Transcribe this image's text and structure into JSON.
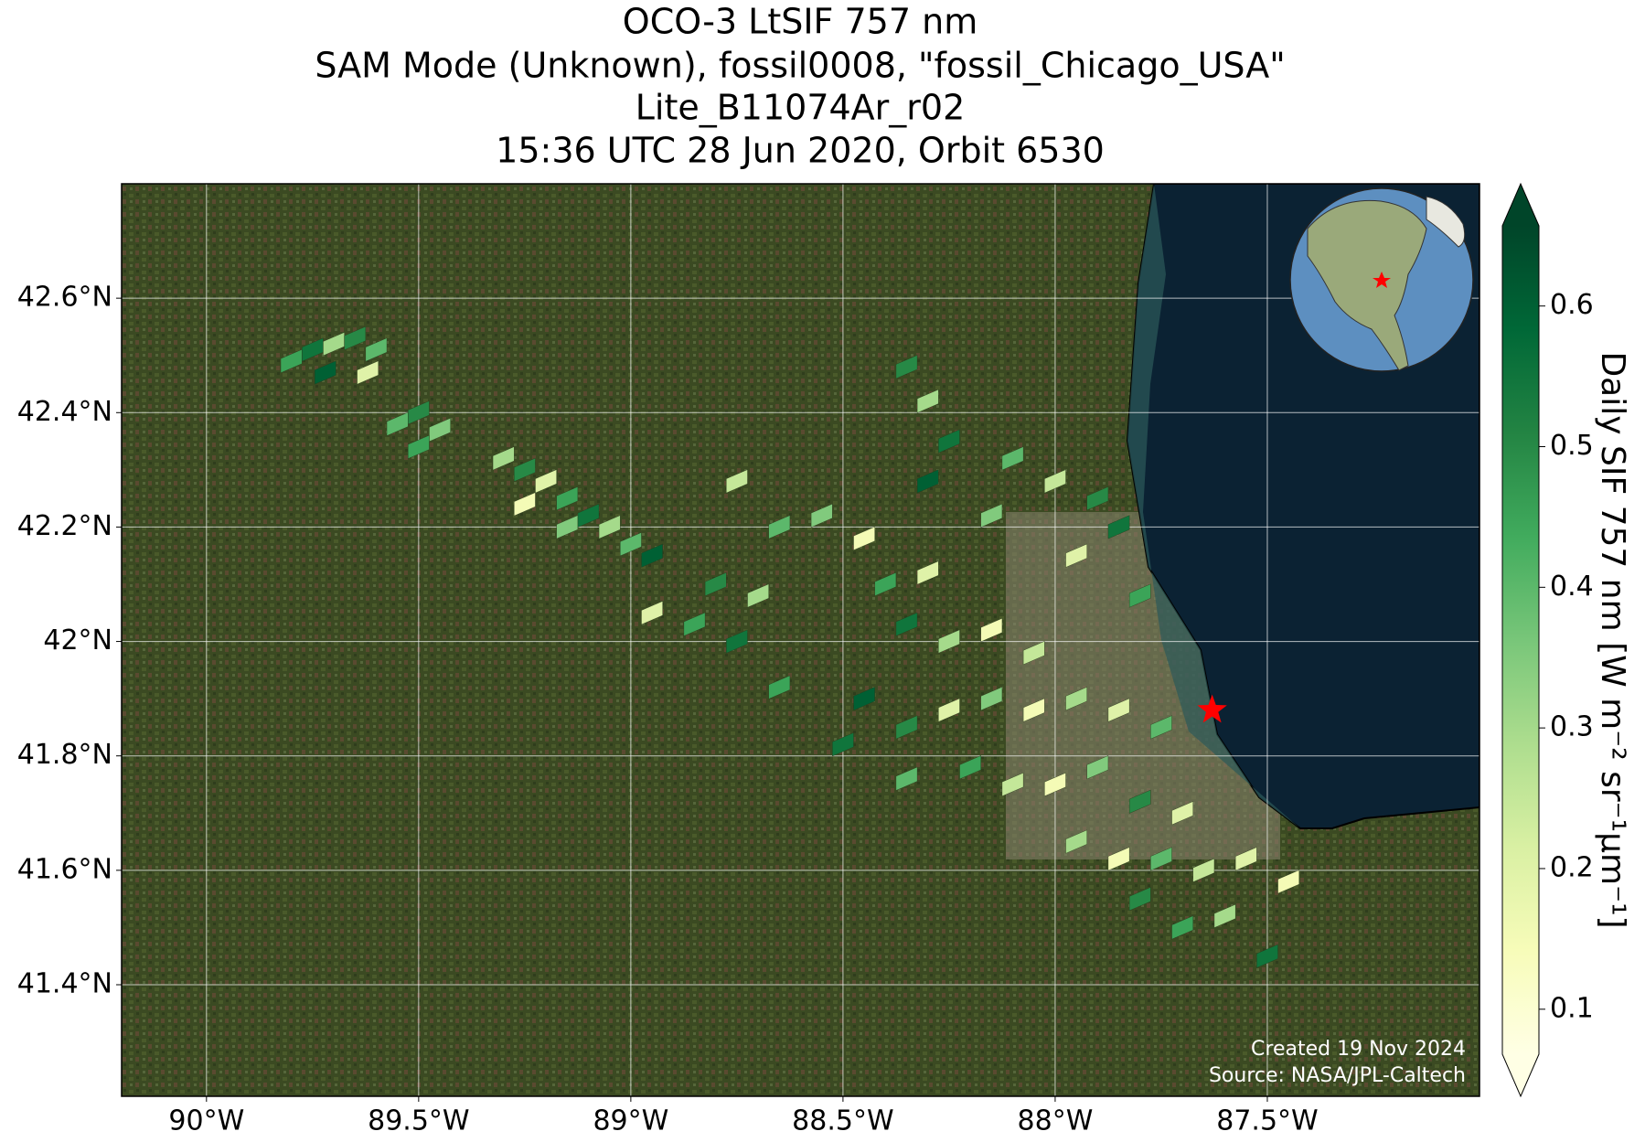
{
  "chart_data": {
    "type": "map",
    "title": "OCO-3 LtSIF 757 nm",
    "subtitle": [
      "SAM Mode (Unknown), fossil0008, \"fossil_Chicago_USA\"",
      "Lite_B11074Ar_r02",
      "15:36 UTC 28 Jun 2020, Orbit 6530"
    ],
    "xlim": [
      -90.2,
      -87.0
    ],
    "ylim": [
      41.205,
      42.8
    ],
    "xticks": [
      {
        "value": -90,
        "label": "90°W"
      },
      {
        "value": -89.5,
        "label": "89.5°W"
      },
      {
        "value": -89,
        "label": "89°W"
      },
      {
        "value": -88.5,
        "label": "88.5°W"
      },
      {
        "value": -88,
        "label": "88°W"
      },
      {
        "value": -87.5,
        "label": "87.5°W"
      }
    ],
    "yticks": [
      {
        "value": 41.4,
        "label": "41.4°N"
      },
      {
        "value": 41.6,
        "label": "41.6°N"
      },
      {
        "value": 41.8,
        "label": "41.8°N"
      },
      {
        "value": 42,
        "label": "42°N"
      },
      {
        "value": 42.2,
        "label": "42.2°N"
      },
      {
        "value": 42.4,
        "label": "42.4°N"
      },
      {
        "value": 42.6,
        "label": "42.6°N"
      }
    ],
    "grid": true,
    "colorbar_label": "Daily SIF 757 nm [W m⁻² sr⁻¹μm⁻¹]",
    "clim": [
      0.068,
      0.657
    ],
    "cticks": [
      0.1,
      0.2,
      0.3,
      0.4,
      0.5,
      0.6
    ],
    "colormap": [
      "#ffffe5",
      "#f7fcb9",
      "#d9f0a3",
      "#addd8e",
      "#78c679",
      "#41ab5d",
      "#238443",
      "#006837",
      "#004529"
    ],
    "target": {
      "lon": -87.63,
      "lat": 41.88,
      "color": "#ff0000"
    },
    "credits": [
      "Created 19 Nov 2024",
      "Source: NASA/JPL-Caltech"
    ],
    "x": [
      -89.8,
      -89.75,
      -89.7,
      -89.65,
      -89.6,
      -89.72,
      -89.62,
      -89.55,
      -89.5,
      -89.45,
      -89.5,
      -89.3,
      -89.25,
      -89.2,
      -89.15,
      -89.1,
      -89.05,
      -89.0,
      -88.95,
      -89.15,
      -89.25,
      -88.95,
      -88.85,
      -88.75,
      -88.7,
      -88.8,
      -88.65,
      -88.75,
      -88.65,
      -88.35,
      -88.3,
      -88.25,
      -88.1,
      -88.0,
      -87.9,
      -88.3,
      -88.15,
      -87.95,
      -87.8,
      -87.85,
      -88.55,
      -88.45,
      -88.4,
      -88.3,
      -88.35,
      -88.25,
      -88.15,
      -88.05,
      -88.45,
      -88.35,
      -88.25,
      -88.15,
      -88.05,
      -87.95,
      -87.85,
      -87.75,
      -88.2,
      -88.1,
      -88.0,
      -87.9,
      -87.8,
      -87.7,
      -87.95,
      -87.85,
      -87.75,
      -87.65,
      -87.55,
      -87.45,
      -87.6,
      -87.7,
      -87.5,
      -87.8,
      -88.35,
      -88.5
    ],
    "y": [
      42.49,
      42.51,
      42.52,
      42.53,
      42.51,
      42.47,
      42.47,
      42.38,
      42.4,
      42.37,
      42.34,
      42.32,
      42.3,
      42.28,
      42.25,
      42.22,
      42.2,
      42.17,
      42.15,
      42.2,
      42.24,
      42.05,
      42.03,
      42.0,
      42.08,
      42.1,
      42.2,
      42.28,
      41.92,
      42.48,
      42.42,
      42.35,
      42.32,
      42.28,
      42.25,
      42.28,
      42.22,
      42.15,
      42.08,
      42.2,
      42.22,
      42.18,
      42.1,
      42.12,
      42.03,
      42.0,
      42.02,
      41.98,
      41.9,
      41.85,
      41.88,
      41.9,
      41.88,
      41.9,
      41.88,
      41.85,
      41.78,
      41.75,
      41.75,
      41.78,
      41.72,
      41.7,
      41.65,
      41.62,
      41.62,
      41.6,
      41.62,
      41.58,
      41.52,
      41.5,
      41.45,
      41.55,
      41.76,
      41.82
    ],
    "values": [
      0.45,
      0.55,
      0.3,
      0.5,
      0.4,
      0.6,
      0.2,
      0.4,
      0.5,
      0.35,
      0.45,
      0.3,
      0.5,
      0.2,
      0.45,
      0.55,
      0.3,
      0.4,
      0.6,
      0.35,
      0.15,
      0.2,
      0.45,
      0.55,
      0.3,
      0.5,
      0.4,
      0.25,
      0.45,
      0.5,
      0.3,
      0.55,
      0.4,
      0.25,
      0.5,
      0.6,
      0.35,
      0.2,
      0.45,
      0.55,
      0.35,
      0.15,
      0.45,
      0.2,
      0.55,
      0.3,
      0.15,
      0.25,
      0.6,
      0.5,
      0.2,
      0.35,
      0.15,
      0.3,
      0.2,
      0.4,
      0.45,
      0.25,
      0.15,
      0.35,
      0.5,
      0.2,
      0.3,
      0.15,
      0.4,
      0.25,
      0.2,
      0.15,
      0.3,
      0.45,
      0.55,
      0.5,
      0.4,
      0.55
    ]
  }
}
